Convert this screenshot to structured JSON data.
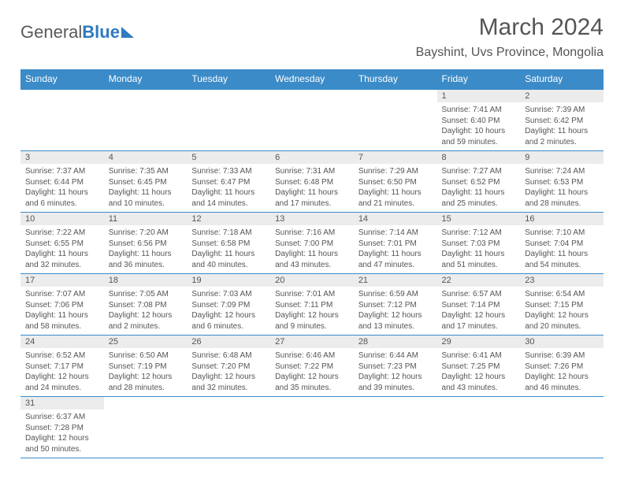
{
  "logo": {
    "part1": "General",
    "part2": "Blue"
  },
  "title": "March 2024",
  "location": "Bayshint, Uvs Province, Mongolia",
  "colors": {
    "header_bg": "#3b8bc8",
    "header_text": "#ffffff",
    "daynum_bg": "#ececec",
    "text": "#555555",
    "border": "#3b8bc8",
    "logo_gray": "#5a5a5a",
    "logo_blue": "#2f7bbf"
  },
  "weekdays": [
    "Sunday",
    "Monday",
    "Tuesday",
    "Wednesday",
    "Thursday",
    "Friday",
    "Saturday"
  ],
  "weeks": [
    [
      null,
      null,
      null,
      null,
      null,
      {
        "n": "1",
        "sr": "Sunrise: 7:41 AM",
        "ss": "Sunset: 6:40 PM",
        "dl": "Daylight: 10 hours and 59 minutes."
      },
      {
        "n": "2",
        "sr": "Sunrise: 7:39 AM",
        "ss": "Sunset: 6:42 PM",
        "dl": "Daylight: 11 hours and 2 minutes."
      }
    ],
    [
      {
        "n": "3",
        "sr": "Sunrise: 7:37 AM",
        "ss": "Sunset: 6:44 PM",
        "dl": "Daylight: 11 hours and 6 minutes."
      },
      {
        "n": "4",
        "sr": "Sunrise: 7:35 AM",
        "ss": "Sunset: 6:45 PM",
        "dl": "Daylight: 11 hours and 10 minutes."
      },
      {
        "n": "5",
        "sr": "Sunrise: 7:33 AM",
        "ss": "Sunset: 6:47 PM",
        "dl": "Daylight: 11 hours and 14 minutes."
      },
      {
        "n": "6",
        "sr": "Sunrise: 7:31 AM",
        "ss": "Sunset: 6:48 PM",
        "dl": "Daylight: 11 hours and 17 minutes."
      },
      {
        "n": "7",
        "sr": "Sunrise: 7:29 AM",
        "ss": "Sunset: 6:50 PM",
        "dl": "Daylight: 11 hours and 21 minutes."
      },
      {
        "n": "8",
        "sr": "Sunrise: 7:27 AM",
        "ss": "Sunset: 6:52 PM",
        "dl": "Daylight: 11 hours and 25 minutes."
      },
      {
        "n": "9",
        "sr": "Sunrise: 7:24 AM",
        "ss": "Sunset: 6:53 PM",
        "dl": "Daylight: 11 hours and 28 minutes."
      }
    ],
    [
      {
        "n": "10",
        "sr": "Sunrise: 7:22 AM",
        "ss": "Sunset: 6:55 PM",
        "dl": "Daylight: 11 hours and 32 minutes."
      },
      {
        "n": "11",
        "sr": "Sunrise: 7:20 AM",
        "ss": "Sunset: 6:56 PM",
        "dl": "Daylight: 11 hours and 36 minutes."
      },
      {
        "n": "12",
        "sr": "Sunrise: 7:18 AM",
        "ss": "Sunset: 6:58 PM",
        "dl": "Daylight: 11 hours and 40 minutes."
      },
      {
        "n": "13",
        "sr": "Sunrise: 7:16 AM",
        "ss": "Sunset: 7:00 PM",
        "dl": "Daylight: 11 hours and 43 minutes."
      },
      {
        "n": "14",
        "sr": "Sunrise: 7:14 AM",
        "ss": "Sunset: 7:01 PM",
        "dl": "Daylight: 11 hours and 47 minutes."
      },
      {
        "n": "15",
        "sr": "Sunrise: 7:12 AM",
        "ss": "Sunset: 7:03 PM",
        "dl": "Daylight: 11 hours and 51 minutes."
      },
      {
        "n": "16",
        "sr": "Sunrise: 7:10 AM",
        "ss": "Sunset: 7:04 PM",
        "dl": "Daylight: 11 hours and 54 minutes."
      }
    ],
    [
      {
        "n": "17",
        "sr": "Sunrise: 7:07 AM",
        "ss": "Sunset: 7:06 PM",
        "dl": "Daylight: 11 hours and 58 minutes."
      },
      {
        "n": "18",
        "sr": "Sunrise: 7:05 AM",
        "ss": "Sunset: 7:08 PM",
        "dl": "Daylight: 12 hours and 2 minutes."
      },
      {
        "n": "19",
        "sr": "Sunrise: 7:03 AM",
        "ss": "Sunset: 7:09 PM",
        "dl": "Daylight: 12 hours and 6 minutes."
      },
      {
        "n": "20",
        "sr": "Sunrise: 7:01 AM",
        "ss": "Sunset: 7:11 PM",
        "dl": "Daylight: 12 hours and 9 minutes."
      },
      {
        "n": "21",
        "sr": "Sunrise: 6:59 AM",
        "ss": "Sunset: 7:12 PM",
        "dl": "Daylight: 12 hours and 13 minutes."
      },
      {
        "n": "22",
        "sr": "Sunrise: 6:57 AM",
        "ss": "Sunset: 7:14 PM",
        "dl": "Daylight: 12 hours and 17 minutes."
      },
      {
        "n": "23",
        "sr": "Sunrise: 6:54 AM",
        "ss": "Sunset: 7:15 PM",
        "dl": "Daylight: 12 hours and 20 minutes."
      }
    ],
    [
      {
        "n": "24",
        "sr": "Sunrise: 6:52 AM",
        "ss": "Sunset: 7:17 PM",
        "dl": "Daylight: 12 hours and 24 minutes."
      },
      {
        "n": "25",
        "sr": "Sunrise: 6:50 AM",
        "ss": "Sunset: 7:19 PM",
        "dl": "Daylight: 12 hours and 28 minutes."
      },
      {
        "n": "26",
        "sr": "Sunrise: 6:48 AM",
        "ss": "Sunset: 7:20 PM",
        "dl": "Daylight: 12 hours and 32 minutes."
      },
      {
        "n": "27",
        "sr": "Sunrise: 6:46 AM",
        "ss": "Sunset: 7:22 PM",
        "dl": "Daylight: 12 hours and 35 minutes."
      },
      {
        "n": "28",
        "sr": "Sunrise: 6:44 AM",
        "ss": "Sunset: 7:23 PM",
        "dl": "Daylight: 12 hours and 39 minutes."
      },
      {
        "n": "29",
        "sr": "Sunrise: 6:41 AM",
        "ss": "Sunset: 7:25 PM",
        "dl": "Daylight: 12 hours and 43 minutes."
      },
      {
        "n": "30",
        "sr": "Sunrise: 6:39 AM",
        "ss": "Sunset: 7:26 PM",
        "dl": "Daylight: 12 hours and 46 minutes."
      }
    ],
    [
      {
        "n": "31",
        "sr": "Sunrise: 6:37 AM",
        "ss": "Sunset: 7:28 PM",
        "dl": "Daylight: 12 hours and 50 minutes."
      },
      null,
      null,
      null,
      null,
      null,
      null
    ]
  ]
}
